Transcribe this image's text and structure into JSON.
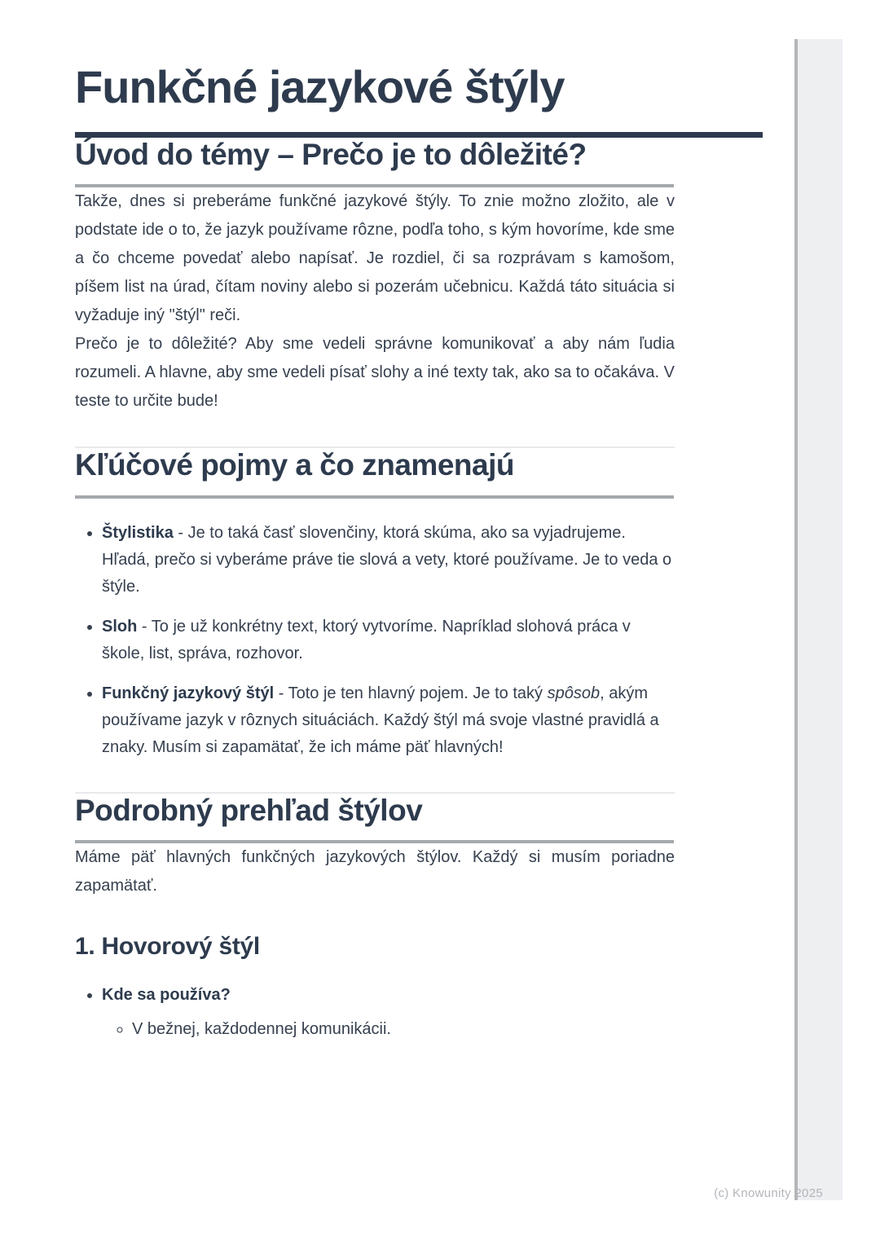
{
  "document": {
    "title": "Funkčné jazykové štýly",
    "sections": {
      "intro": {
        "heading": "Úvod do témy – Prečo je to dôležité?",
        "p1": "Takže, dnes si preberáme funkčné jazykové štýly. To znie možno zložito, ale v podstate ide o to, že jazyk používame rôzne, podľa toho, s kým hovoríme, kde sme a čo chceme povedať alebo napísať. Je rozdiel, či sa rozprávam s kamošom, píšem list na úrad, čítam noviny alebo si pozerám učebnicu. Každá táto situácia si vyžaduje iný \"štýl\" reči.",
        "p2": "Prečo je to dôležité? Aby sme vedeli správne komunikovať a aby nám ľudia rozumeli. A hlavne, aby sme vedeli písať slohy a iné texty tak, ako sa to očakáva. V teste to určite bude!"
      },
      "concepts": {
        "heading": "Kľúčové pojmy a čo znamenajú",
        "items": [
          {
            "term": "Štylistika",
            "rest": "- Je to taká časť slovenčiny, ktorá skúma, ako sa vyjadrujeme. Hľadá, prečo si vyberáme práve tie slová a vety, ktoré používame. Je to veda o štýle."
          },
          {
            "term": "Sloh",
            "rest": "- To je už konkrétny text, ktorý vytvoríme. Napríklad slohová práca v škole, list, správa, rozhovor."
          },
          {
            "term": "Funkčný jazykový štýl",
            "rest_a": "- Toto je ten hlavný pojem. Je to taký ",
            "italic": "spôsob",
            "rest_b": ", akým používame jazyk v rôznych situáciách. Každý štýl má svoje vlastné pravidlá a znaky. Musím si zapamätať, že ich máme päť hlavných!"
          }
        ]
      },
      "overview": {
        "heading": "Podrobný prehľad štýlov",
        "p1": "Máme päť hlavných funkčných jazykových štýlov. Každý si musím poriadne zapamätať.",
        "sub": {
          "heading": "1. Hovorový štýl",
          "q": "Kde sa používa?",
          "a": "V bežnej, každodennej komunikácii."
        }
      }
    },
    "footer": "(c) Knowunity 2025"
  },
  "colors": {
    "heading_navy": "#2e3b4e",
    "body_text": "#36404f",
    "heading_rule_gray": "#a5a8ac",
    "divider_gray": "#e8e9ea",
    "footer_gray": "#b2b5ba",
    "strip_fill": "#edeff1",
    "strip_border": "#b3b6b9"
  }
}
